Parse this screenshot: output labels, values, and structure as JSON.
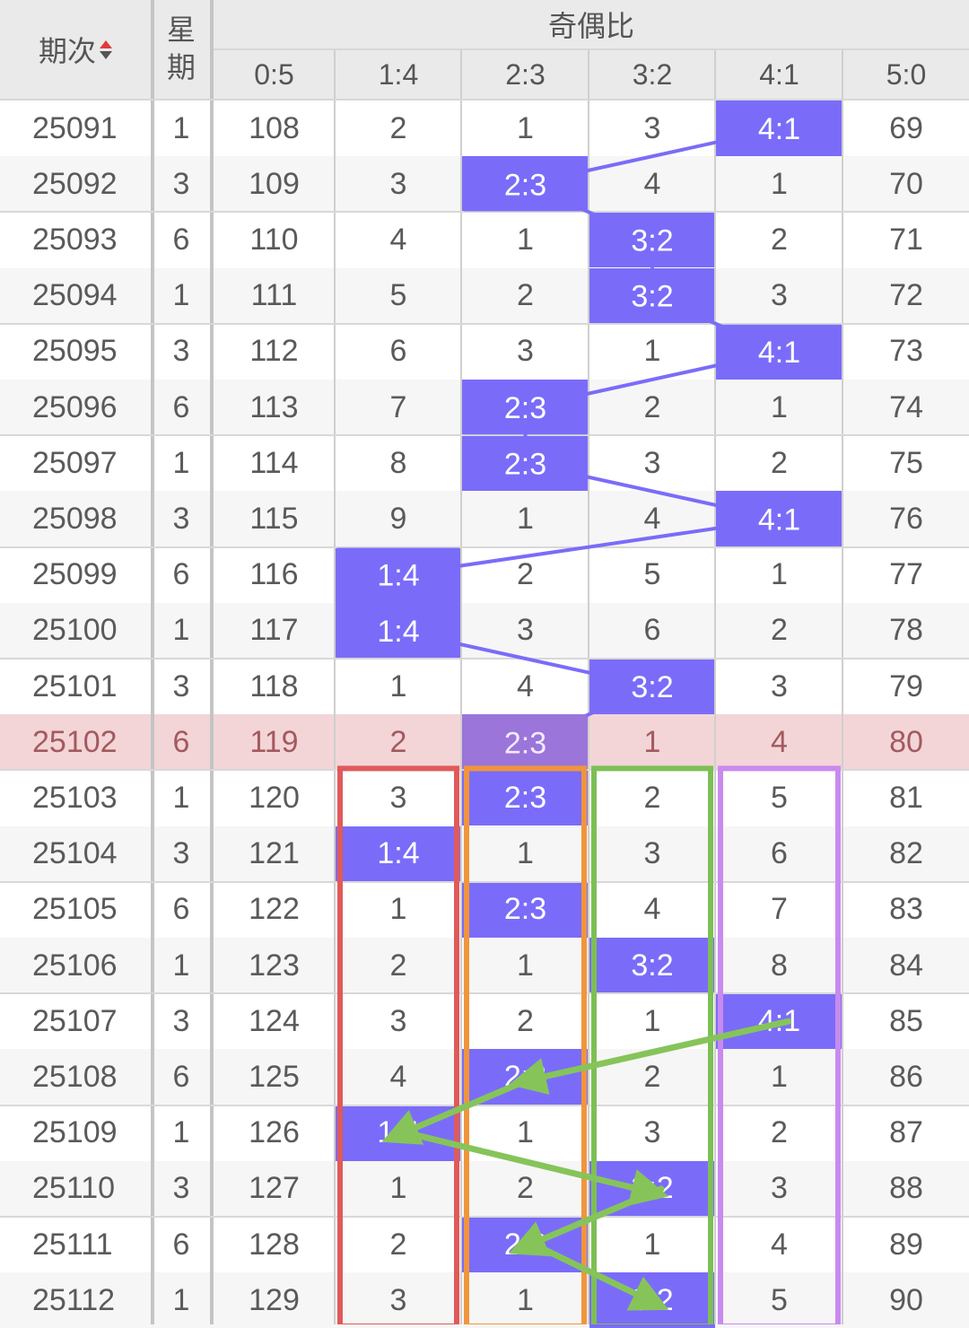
{
  "header": {
    "issue_label": "期次",
    "weekday_label_top": "星",
    "weekday_label_bottom": "期",
    "group_label": "奇偶比",
    "ratio_columns": [
      "0:5",
      "1:4",
      "2:3",
      "3:2",
      "4:1",
      "5:0"
    ]
  },
  "colors": {
    "hit_cell": "#7a6cf9",
    "trend_line": "#7a6cf9",
    "current_row": "#f3d5d7",
    "box_red": "#e05a5a",
    "box_orange": "#f0953c",
    "box_green": "#7dbf55",
    "box_purple": "#c98af0",
    "arrow": "#86c45a"
  },
  "rows": [
    {
      "issue": "25091",
      "weekday": "1",
      "values": [
        "108",
        "2",
        "1",
        "3",
        "4:1",
        "69"
      ],
      "hit": 4
    },
    {
      "issue": "25092",
      "weekday": "3",
      "values": [
        "109",
        "3",
        "2:3",
        "4",
        "1",
        "70"
      ],
      "hit": 2
    },
    {
      "issue": "25093",
      "weekday": "6",
      "values": [
        "110",
        "4",
        "1",
        "3:2",
        "2",
        "71"
      ],
      "hit": 3
    },
    {
      "issue": "25094",
      "weekday": "1",
      "values": [
        "111",
        "5",
        "2",
        "3:2",
        "3",
        "72"
      ],
      "hit": 3
    },
    {
      "issue": "25095",
      "weekday": "3",
      "values": [
        "112",
        "6",
        "3",
        "1",
        "4:1",
        "73"
      ],
      "hit": 4
    },
    {
      "issue": "25096",
      "weekday": "6",
      "values": [
        "113",
        "7",
        "2:3",
        "2",
        "1",
        "74"
      ],
      "hit": 2
    },
    {
      "issue": "25097",
      "weekday": "1",
      "values": [
        "114",
        "8",
        "2:3",
        "3",
        "2",
        "75"
      ],
      "hit": 2
    },
    {
      "issue": "25098",
      "weekday": "3",
      "values": [
        "115",
        "9",
        "1",
        "4",
        "4:1",
        "76"
      ],
      "hit": 4
    },
    {
      "issue": "25099",
      "weekday": "6",
      "values": [
        "116",
        "1:4",
        "2",
        "5",
        "1",
        "77"
      ],
      "hit": 1
    },
    {
      "issue": "25100",
      "weekday": "1",
      "values": [
        "117",
        "1:4",
        "3",
        "6",
        "2",
        "78"
      ],
      "hit": 1
    },
    {
      "issue": "25101",
      "weekday": "3",
      "values": [
        "118",
        "1",
        "4",
        "3:2",
        "3",
        "79"
      ],
      "hit": 3
    },
    {
      "issue": "25102",
      "weekday": "6",
      "values": [
        "119",
        "2",
        "2:3",
        "1",
        "4",
        "80"
      ],
      "hit": 2,
      "current": true
    },
    {
      "issue": "25103",
      "weekday": "1",
      "values": [
        "120",
        "3",
        "2:3",
        "2",
        "5",
        "81"
      ],
      "hit": 2
    },
    {
      "issue": "25104",
      "weekday": "3",
      "values": [
        "121",
        "1:4",
        "1",
        "3",
        "6",
        "82"
      ],
      "hit": 1
    },
    {
      "issue": "25105",
      "weekday": "6",
      "values": [
        "122",
        "1",
        "2:3",
        "4",
        "7",
        "83"
      ],
      "hit": 2
    },
    {
      "issue": "25106",
      "weekday": "1",
      "values": [
        "123",
        "2",
        "1",
        "3:2",
        "8",
        "84"
      ],
      "hit": 3
    },
    {
      "issue": "25107",
      "weekday": "3",
      "values": [
        "124",
        "3",
        "2",
        "1",
        "4:1",
        "85"
      ],
      "hit": 4
    },
    {
      "issue": "25108",
      "weekday": "6",
      "values": [
        "125",
        "4",
        "2:3",
        "2",
        "1",
        "86"
      ],
      "hit": 2
    },
    {
      "issue": "25109",
      "weekday": "1",
      "values": [
        "126",
        "1:4",
        "1",
        "3",
        "2",
        "87"
      ],
      "hit": 1
    },
    {
      "issue": "25110",
      "weekday": "3",
      "values": [
        "127",
        "1",
        "2",
        "3:2",
        "3",
        "88"
      ],
      "hit": 3
    },
    {
      "issue": "25111",
      "weekday": "6",
      "values": [
        "128",
        "2",
        "2:3",
        "1",
        "4",
        "89"
      ],
      "hit": 2
    },
    {
      "issue": "25112",
      "weekday": "1",
      "values": [
        "129",
        "3",
        "1",
        "3:2",
        "5",
        "90"
      ],
      "hit": 3
    }
  ]
}
